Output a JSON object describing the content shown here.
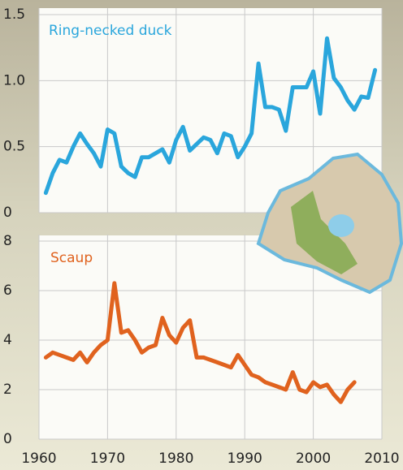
{
  "chart_data": [
    {
      "type": "line",
      "title": "Ring-necked duck",
      "xlim": [
        1960,
        2010
      ],
      "ylim": [
        0,
        1.5
      ],
      "yticks": [
        0,
        0.5,
        {
          "value": 1,
          "label": "1.0"
        },
        1.5
      ],
      "grid": true,
      "x": [
        1961,
        1962,
        1963,
        1964,
        1965,
        1966,
        1967,
        1968,
        1969,
        1970,
        1971,
        1972,
        1973,
        1974,
        1975,
        1976,
        1977,
        1978,
        1979,
        1980,
        1981,
        1982,
        1983,
        1984,
        1985,
        1986,
        1987,
        1988,
        1989,
        1990,
        1991,
        1992,
        1993,
        1994,
        1995,
        1996,
        1997,
        1998,
        1999,
        2000,
        2001,
        2002,
        2003,
        2004,
        2005,
        2006,
        2007,
        2008,
        2009
      ],
      "series": [
        {
          "name": "Ring-necked duck",
          "color": "#2aa6dc",
          "values": [
            0.15,
            0.3,
            0.4,
            0.38,
            0.5,
            0.6,
            0.52,
            0.45,
            0.35,
            0.63,
            0.6,
            0.35,
            0.3,
            0.27,
            0.42,
            0.42,
            0.45,
            0.48,
            0.38,
            0.55,
            0.65,
            0.47,
            0.52,
            0.57,
            0.55,
            0.45,
            0.6,
            0.58,
            0.42,
            0.5,
            0.6,
            1.13,
            0.8,
            0.8,
            0.78,
            0.62,
            0.95,
            0.95,
            0.95,
            1.07,
            0.75,
            1.32,
            1.02,
            0.95,
            0.85,
            0.78,
            0.88,
            0.87,
            1.08
          ]
        }
      ]
    },
    {
      "type": "line",
      "title": "Scaup",
      "xlim": [
        1960,
        2010
      ],
      "ylim": [
        0,
        8
      ],
      "xticks": [
        1960,
        1970,
        1980,
        1990,
        2000,
        2010
      ],
      "yticks": [
        0,
        2,
        4,
        6,
        8
      ],
      "grid": true,
      "x": [
        1961,
        1962,
        1963,
        1964,
        1965,
        1966,
        1967,
        1968,
        1969,
        1970,
        1971,
        1972,
        1973,
        1974,
        1975,
        1976,
        1977,
        1978,
        1979,
        1980,
        1981,
        1982,
        1983,
        1984,
        1985,
        1986,
        1987,
        1988,
        1989,
        1990,
        1991,
        1992,
        1993,
        1994,
        1995,
        1996,
        1997,
        1998,
        1999,
        2000,
        2001,
        2002,
        2003,
        2004,
        2005,
        2006
      ],
      "series": [
        {
          "name": "Scaup",
          "color": "#e0621e",
          "values": [
            3.3,
            3.5,
            3.4,
            3.3,
            3.2,
            3.5,
            3.1,
            3.5,
            3.8,
            4.0,
            6.3,
            4.3,
            4.4,
            4.0,
            3.5,
            3.7,
            3.8,
            4.9,
            4.2,
            3.9,
            4.5,
            4.8,
            3.3,
            3.3,
            3.2,
            3.1,
            3.0,
            2.9,
            3.4,
            3.0,
            2.6,
            2.5,
            2.3,
            2.2,
            2.1,
            2.0,
            2.7,
            2.0,
            1.9,
            2.3,
            2.1,
            2.2,
            1.8,
            1.5,
            2.0,
            2.3
          ]
        }
      ]
    }
  ]
}
